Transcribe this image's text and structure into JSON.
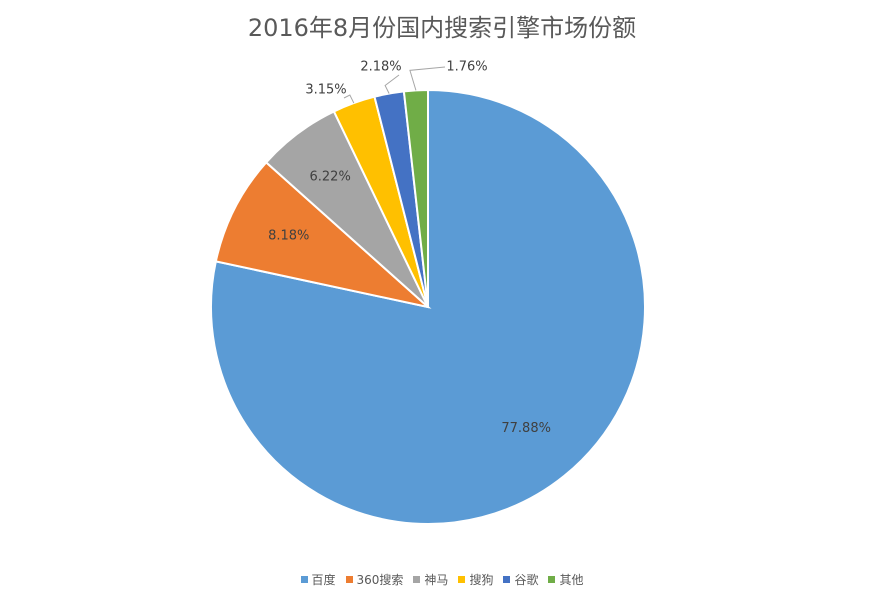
{
  "chart_data": {
    "type": "pie",
    "title": "2016年8月份国内搜索引擎市场份额",
    "categories": [
      "百度",
      "360搜索",
      "神马",
      "搜狗",
      "谷歌",
      "其他"
    ],
    "values": [
      77.88,
      8.18,
      6.22,
      3.15,
      2.18,
      1.76
    ],
    "labels": [
      "77.88%",
      "8.18%",
      "6.22%",
      "3.15%",
      "2.18%",
      "1.76%"
    ],
    "colors": [
      "#5B9BD5",
      "#ED7D31",
      "#A5A5A5",
      "#FFC000",
      "#4472C4",
      "#70AD47"
    ],
    "legend": "bottom"
  }
}
